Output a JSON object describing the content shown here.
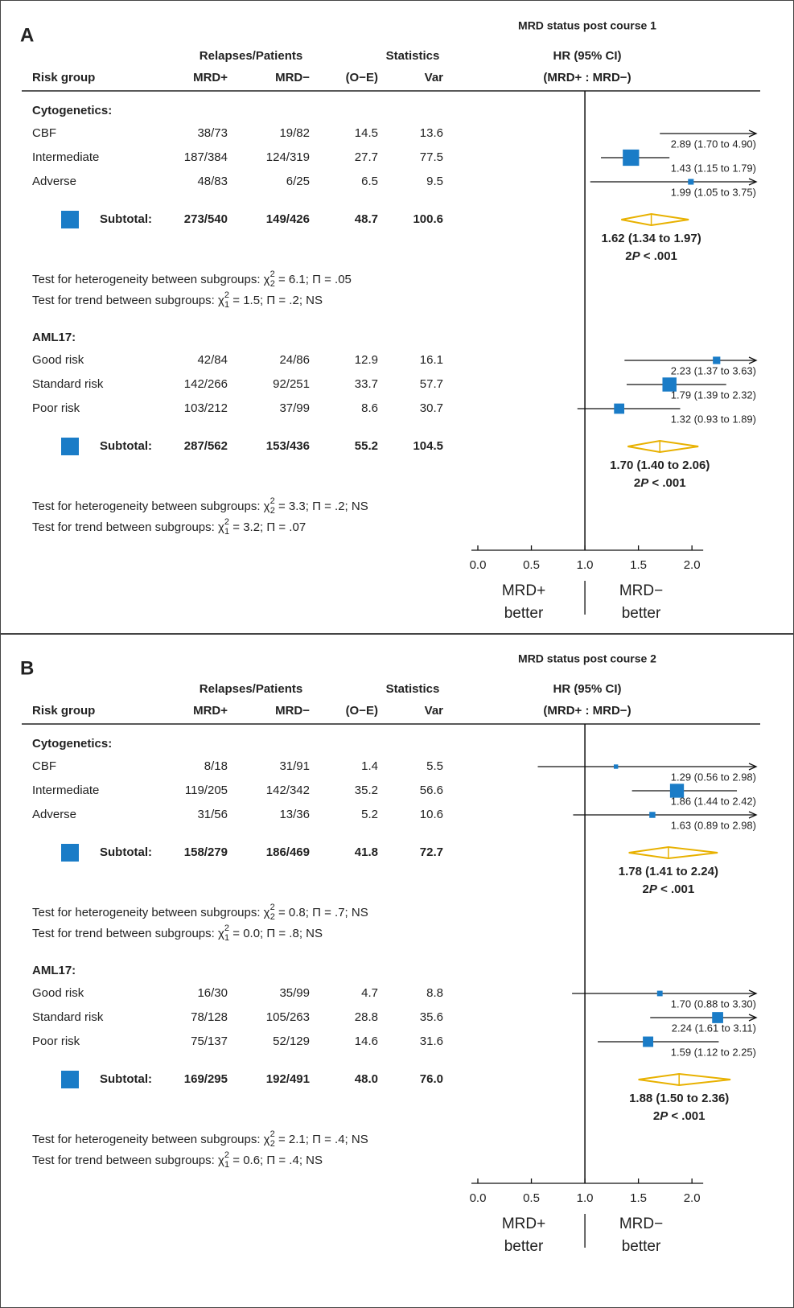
{
  "chart_data": [
    {
      "type": "forest",
      "panel": "A",
      "title": "MRD status post course 1",
      "headers": {
        "risk_group": "Risk group",
        "relapses": "Relapses/Patients",
        "mrd_pos": "MRD+",
        "mrd_neg": "MRD−",
        "statistics": "Statistics",
        "oe": "(O−E)",
        "var": "Var",
        "hr": "HR (95% CI)",
        "hr_sub": "(MRD+ : MRD−)"
      },
      "groups": [
        {
          "name": "Cytogenetics:",
          "rows": [
            {
              "label": "CBF",
              "mrd_pos": "38/73",
              "mrd_neg": "19/82",
              "oe": 14.5,
              "var": 13.6,
              "hr": 2.89,
              "ci": [
                1.7,
                4.9
              ],
              "hr_label": "2.89 (1.70 to 4.90)"
            },
            {
              "label": "Intermediate",
              "mrd_pos": "187/384",
              "mrd_neg": "124/319",
              "oe": 27.7,
              "var": 77.5,
              "hr": 1.43,
              "ci": [
                1.15,
                1.79
              ],
              "hr_label": "1.43 (1.15 to 1.79)"
            },
            {
              "label": "Adverse",
              "mrd_pos": "48/83",
              "mrd_neg": "6/25",
              "oe": 6.5,
              "var": 9.5,
              "hr": 1.99,
              "ci": [
                1.05,
                3.75
              ],
              "hr_label": "1.99 (1.05 to 3.75)"
            }
          ],
          "subtotal": {
            "label": "Subtotal:",
            "mrd_pos": "273/540",
            "mrd_neg": "149/426",
            "oe": 48.7,
            "var": 100.6,
            "hr": 1.62,
            "ci": [
              1.34,
              1.97
            ],
            "hr_label": "1.62 (1.34 to 1.97)",
            "p_label": [
              "2",
              "P",
              " < .001"
            ]
          },
          "tests": [
            {
              "text": "Test for heterogeneity between subgroups: χ",
              "sup": "2",
              "sub": "2",
              "rest": " = 6.1; Π = .05"
            },
            {
              "text": "Test for trend between subgroups: χ",
              "sup": "2",
              "sub": "1",
              "rest": " = 1.5; Π = .2; NS"
            }
          ]
        },
        {
          "name": "AML17:",
          "rows": [
            {
              "label": "Good risk",
              "mrd_pos": "42/84",
              "mrd_neg": "24/86",
              "oe": 12.9,
              "var": 16.1,
              "hr": 2.23,
              "ci": [
                1.37,
                3.63
              ],
              "hr_label": "2.23 (1.37 to 3.63)"
            },
            {
              "label": "Standard risk",
              "mrd_pos": "142/266",
              "mrd_neg": "92/251",
              "oe": 33.7,
              "var": 57.7,
              "hr": 1.79,
              "ci": [
                1.39,
                2.32
              ],
              "hr_label": "1.79 (1.39 to 2.32)"
            },
            {
              "label": "Poor risk",
              "mrd_pos": "103/212",
              "mrd_neg": "37/99",
              "oe": 8.6,
              "var": 30.7,
              "hr": 1.32,
              "ci": [
                0.93,
                1.89
              ],
              "hr_label": "1.32 (0.93 to 1.89)"
            }
          ],
          "subtotal": {
            "label": "Subtotal:",
            "mrd_pos": "287/562",
            "mrd_neg": "153/436",
            "oe": 55.2,
            "var": 104.5,
            "hr": 1.7,
            "ci": [
              1.4,
              2.06
            ],
            "hr_label": "1.70 (1.40 to 2.06)",
            "p_label": [
              "2",
              "P",
              " < .001"
            ]
          },
          "tests": [
            {
              "text": "Test for heterogeneity between subgroups: χ",
              "sup": "2",
              "sub": "2",
              "rest": " = 3.3; Π = .2; NS"
            },
            {
              "text": "Test for trend between subgroups: χ",
              "sup": "2",
              "sub": "1",
              "rest": " = 3.2; Π = .07"
            }
          ]
        }
      ],
      "xlim": [
        0,
        2.6
      ],
      "xticks": [
        {
          "value": 0,
          "label": "0.0"
        },
        0.5,
        {
          "value": 1,
          "label": "1.0"
        },
        1.5,
        {
          "value": 2,
          "label": "2.0"
        }
      ],
      "reference_line": 1,
      "favors": [
        [
          "MRD+",
          "better"
        ],
        [
          "MRD−",
          "better"
        ]
      ],
      "marker_color": "#1a7cc7",
      "diamond_color": "#e8b100"
    },
    {
      "type": "forest",
      "panel": "B",
      "title": "MRD status post course 2",
      "headers": {
        "risk_group": "Risk group",
        "relapses": "Relapses/Patients",
        "mrd_pos": "MRD+",
        "mrd_neg": "MRD−",
        "statistics": "Statistics",
        "oe": "(O−E)",
        "var": "Var",
        "hr": "HR (95% CI)",
        "hr_sub": "(MRD+ : MRD−)"
      },
      "groups": [
        {
          "name": "Cytogenetics:",
          "rows": [
            {
              "label": "CBF",
              "mrd_pos": "8/18",
              "mrd_neg": "31/91",
              "oe": 1.4,
              "var": 5.5,
              "hr": 1.29,
              "ci": [
                0.56,
                2.98
              ],
              "hr_label": "1.29 (0.56 to 2.98)"
            },
            {
              "label": "Intermediate",
              "mrd_pos": "119/205",
              "mrd_neg": "142/342",
              "oe": 35.2,
              "var": 56.6,
              "hr": 1.86,
              "ci": [
                1.44,
                2.42
              ],
              "hr_label": "1.86 (1.44 to 2.42)"
            },
            {
              "label": "Adverse",
              "mrd_pos": "31/56",
              "mrd_neg": "13/36",
              "oe": 5.2,
              "var": 10.6,
              "hr": 1.63,
              "ci": [
                0.89,
                2.98
              ],
              "hr_label": "1.63 (0.89 to 2.98)"
            }
          ],
          "subtotal": {
            "label": "Subtotal:",
            "mrd_pos": "158/279",
            "mrd_neg": "186/469",
            "oe": 41.8,
            "var": 72.7,
            "hr": 1.78,
            "ci": [
              1.41,
              2.24
            ],
            "hr_label": "1.78 (1.41 to 2.24)",
            "p_label": [
              "2",
              "P",
              " < .001"
            ]
          },
          "tests": [
            {
              "text": "Test for heterogeneity between subgroups: χ",
              "sup": "2",
              "sub": "2",
              "rest": " = 0.8; Π = .7; NS"
            },
            {
              "text": "Test for trend between subgroups: χ",
              "sup": "2",
              "sub": "1",
              "rest": " = 0.0; Π = .8; NS"
            }
          ]
        },
        {
          "name": "AML17:",
          "rows": [
            {
              "label": "Good risk",
              "mrd_pos": "16/30",
              "mrd_neg": "35/99",
              "oe": 4.7,
              "var": 8.8,
              "hr": 1.7,
              "ci": [
                0.88,
                3.3
              ],
              "hr_label": "1.70 (0.88 to 3.30)"
            },
            {
              "label": "Standard risk",
              "mrd_pos": "78/128",
              "mrd_neg": "105/263",
              "oe": 28.8,
              "var": 35.6,
              "hr": 2.24,
              "ci": [
                1.61,
                3.11
              ],
              "hr_label": "2.24 (1.61 to 3.11)"
            },
            {
              "label": "Poor risk",
              "mrd_pos": "75/137",
              "mrd_neg": "52/129",
              "oe": 14.6,
              "var": 31.6,
              "hr": 1.59,
              "ci": [
                1.12,
                2.25
              ],
              "hr_label": "1.59 (1.12 to 2.25)"
            }
          ],
          "subtotal": {
            "label": "Subtotal:",
            "mrd_pos": "169/295",
            "mrd_neg": "192/491",
            "oe": 48,
            "oe_label": "48.0",
            "var": 76,
            "var_label": "76.0",
            "hr": 1.88,
            "ci": [
              1.5,
              2.36
            ],
            "hr_label": "1.88 (1.50 to 2.36)",
            "p_label": [
              "2",
              "P",
              " < .001"
            ]
          },
          "tests": [
            {
              "text": "Test for heterogeneity between subgroups: χ",
              "sup": "2",
              "sub": "2",
              "rest": " = 2.1; Π = .4; NS"
            },
            {
              "text": "Test for trend between subgroups: χ",
              "sup": "2",
              "sub": "1",
              "rest": " = 0.6; Π = .4; NS"
            }
          ]
        }
      ],
      "xlim": [
        0,
        2.6
      ],
      "xticks": [
        {
          "value": 0,
          "label": "0.0"
        },
        0.5,
        {
          "value": 1,
          "label": "1.0"
        },
        1.5,
        {
          "value": 2,
          "label": "2.0"
        }
      ],
      "reference_line": 1,
      "favors": [
        [
          "MRD+",
          "better"
        ],
        [
          "MRD−",
          "better"
        ]
      ],
      "marker_color": "#1a7cc7",
      "diamond_color": "#e8b100"
    }
  ]
}
